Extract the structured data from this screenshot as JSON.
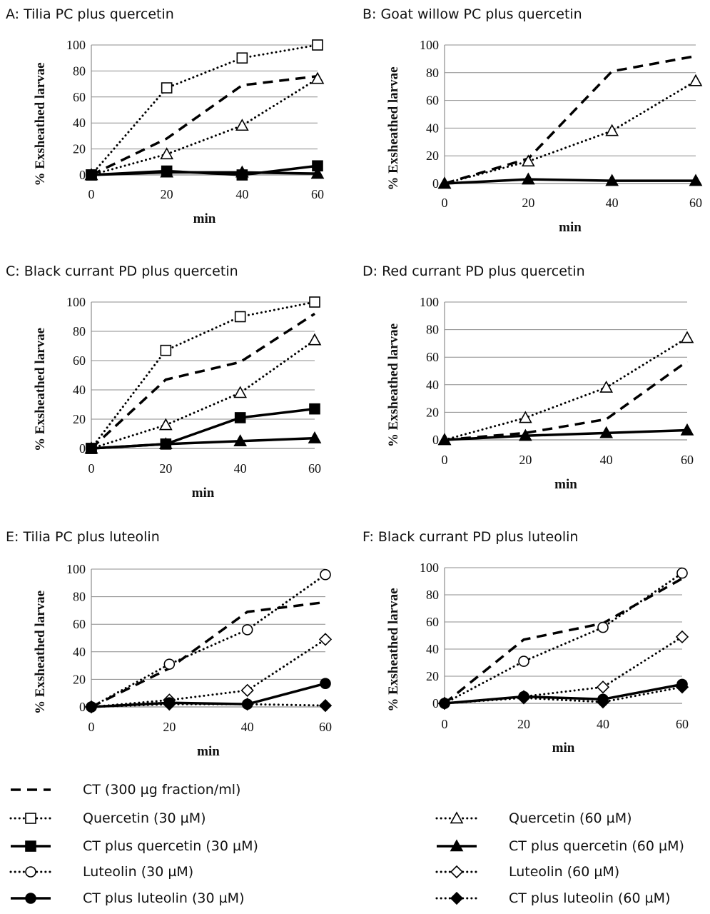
{
  "legend": [
    {
      "key": "ct",
      "label": "CT (300 µg fraction/ml)",
      "line": "dash",
      "marker": "none"
    },
    {
      "key": "q30",
      "label": "Quercetin (30 µM)",
      "line": "dot",
      "marker": "square-open"
    },
    {
      "key": "q60",
      "label": "Quercetin (60 µM)",
      "line": "dot",
      "marker": "triangle-open"
    },
    {
      "key": "ctq30",
      "label": "CT plus quercetin (30 µM)",
      "line": "solid",
      "marker": "square-filled"
    },
    {
      "key": "ctq60",
      "label": "CT plus quercetin (60 µM)",
      "line": "solid",
      "marker": "triangle-filled"
    },
    {
      "key": "l30",
      "label": "Luteolin (30 µM)",
      "line": "dot",
      "marker": "circle-open"
    },
    {
      "key": "l60",
      "label": "Luteolin (60 µM)",
      "line": "dot",
      "marker": "diamond-open"
    },
    {
      "key": "ctl30",
      "label": "CT plus luteolin (30 µM)",
      "line": "solid",
      "marker": "circle-filled"
    },
    {
      "key": "ctl60",
      "label": "CT plus luteolin (60 µM)",
      "line": "dot",
      "marker": "diamond-filled"
    }
  ],
  "chart_data": [
    {
      "type": "line",
      "title": "A: Tilia PC plus quercetin",
      "xlabel": "min",
      "ylabel": "% Exsheathed larvae",
      "x": [
        0,
        20,
        40,
        60
      ],
      "xlim": [
        0,
        60
      ],
      "ylim": [
        0,
        100
      ],
      "yticks": [
        0,
        20,
        40,
        60,
        80,
        100
      ],
      "grid": "horizontal",
      "series": [
        {
          "key": "ct",
          "values": [
            0,
            28,
            69,
            76
          ]
        },
        {
          "key": "q30",
          "values": [
            0,
            67,
            90,
            100
          ]
        },
        {
          "key": "q60",
          "values": [
            0,
            16,
            38,
            74
          ]
        },
        {
          "key": "ctq30",
          "values": [
            0,
            3,
            0,
            7
          ]
        },
        {
          "key": "ctq60",
          "values": [
            0,
            2,
            2,
            1
          ]
        }
      ]
    },
    {
      "type": "line",
      "title": "B: Goat willow PC plus quercetin",
      "xlabel": "min",
      "ylabel": "% Exsheathed larvae",
      "x": [
        0,
        20,
        40,
        60
      ],
      "xlim": [
        0,
        60
      ],
      "ylim": [
        0,
        100
      ],
      "yticks": [
        0,
        20,
        40,
        60,
        80,
        100
      ],
      "grid": "horizontal",
      "series": [
        {
          "key": "ct",
          "values": [
            0,
            18,
            81,
            92
          ]
        },
        {
          "key": "q60",
          "values": [
            0,
            16,
            38,
            74
          ]
        },
        {
          "key": "ctq60",
          "values": [
            0,
            3,
            2,
            2
          ]
        }
      ]
    },
    {
      "type": "line",
      "title": "C: Black currant PD plus quercetin",
      "xlabel": "min",
      "ylabel": "% Exsheathed larvae",
      "x": [
        0,
        20,
        40,
        60
      ],
      "xlim": [
        0,
        60
      ],
      "ylim": [
        0,
        100
      ],
      "yticks": [
        0,
        20,
        40,
        60,
        80,
        100
      ],
      "grid": "horizontal",
      "series": [
        {
          "key": "ct",
          "values": [
            0,
            47,
            59,
            92
          ]
        },
        {
          "key": "q30",
          "values": [
            0,
            67,
            90,
            100
          ]
        },
        {
          "key": "q60",
          "values": [
            0,
            16,
            38,
            74
          ]
        },
        {
          "key": "ctq30",
          "values": [
            0,
            3,
            21,
            27
          ]
        },
        {
          "key": "ctq60",
          "values": [
            0,
            3,
            5,
            7
          ]
        }
      ]
    },
    {
      "type": "line",
      "title": "D: Red currant PD plus quercetin",
      "xlabel": "min",
      "ylabel": "% Exsheathed larvae",
      "x": [
        0,
        20,
        40,
        60
      ],
      "xlim": [
        0,
        60
      ],
      "ylim": [
        0,
        100
      ],
      "yticks": [
        0,
        20,
        40,
        60,
        80,
        100
      ],
      "grid": "horizontal",
      "series": [
        {
          "key": "ct",
          "values": [
            0,
            5,
            15,
            57
          ]
        },
        {
          "key": "q60",
          "values": [
            0,
            16,
            38,
            74
          ]
        },
        {
          "key": "ctq60",
          "values": [
            0,
            3,
            5,
            7
          ]
        }
      ]
    },
    {
      "type": "line",
      "title": "E: Tilia PC plus luteolin",
      "xlabel": "min",
      "ylabel": "% Exsheathed larvae",
      "x": [
        0,
        20,
        40,
        60
      ],
      "xlim": [
        0,
        60
      ],
      "ylim": [
        0,
        100
      ],
      "yticks": [
        0,
        20,
        40,
        60,
        80,
        100
      ],
      "grid": "horizontal",
      "series": [
        {
          "key": "ct",
          "values": [
            0,
            28,
            69,
            76
          ]
        },
        {
          "key": "l30",
          "values": [
            0,
            31,
            56,
            96
          ]
        },
        {
          "key": "l60",
          "values": [
            0,
            5,
            12,
            49
          ]
        },
        {
          "key": "ctl30",
          "values": [
            0,
            3,
            2,
            17
          ]
        },
        {
          "key": "ctl60",
          "values": [
            0,
            2,
            2,
            1
          ]
        }
      ]
    },
    {
      "type": "line",
      "title": "F: Black currant PD plus luteolin",
      "xlabel": "min",
      "ylabel": "% Exsheathed larvae",
      "x": [
        0,
        20,
        40,
        60
      ],
      "xlim": [
        0,
        60
      ],
      "ylim": [
        0,
        100
      ],
      "yticks": [
        0,
        20,
        40,
        60,
        80,
        100
      ],
      "grid": "horizontal",
      "series": [
        {
          "key": "ct",
          "values": [
            0,
            47,
            59,
            92
          ]
        },
        {
          "key": "l30",
          "values": [
            0,
            31,
            56,
            96
          ]
        },
        {
          "key": "l60",
          "values": [
            0,
            5,
            12,
            49
          ]
        },
        {
          "key": "ctl30",
          "values": [
            0,
            5,
            3,
            14
          ]
        },
        {
          "key": "ctl60",
          "values": [
            0,
            4,
            1,
            12
          ]
        }
      ]
    }
  ]
}
